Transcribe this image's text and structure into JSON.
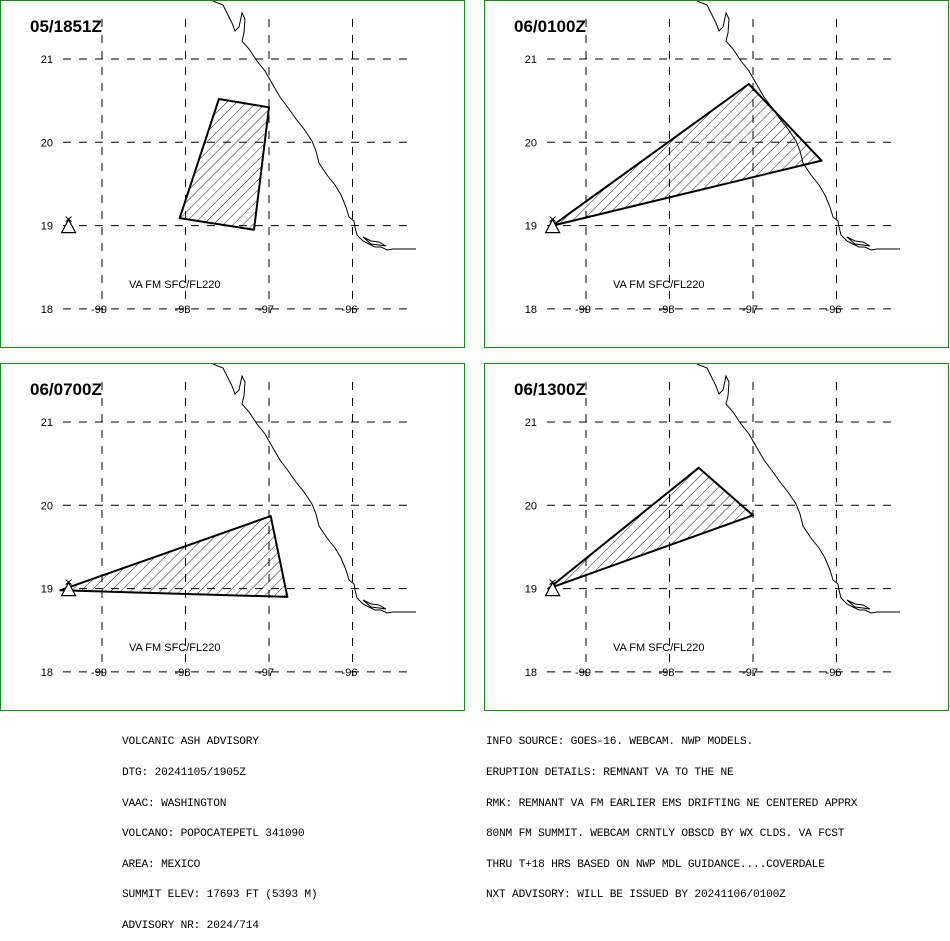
{
  "panels": [
    {
      "time": "05/1851Z",
      "va_label": "VA FM SFC/FL220",
      "polygon": [
        [
          -98.07,
          19.09
        ],
        [
          -97.6,
          20.52
        ],
        [
          -97.0,
          20.42
        ],
        [
          -97.18,
          18.95
        ]
      ]
    },
    {
      "time": "06/0100Z",
      "va_label": "VA FM SFC/FL220",
      "polygon": [
        [
          -99.4,
          19.0
        ],
        [
          -97.05,
          20.7
        ],
        [
          -96.18,
          19.78
        ],
        [
          -99.4,
          19.0
        ]
      ]
    },
    {
      "time": "06/0700Z",
      "va_label": "VA FM SFC/FL220",
      "polygon": [
        [
          -99.5,
          18.98
        ],
        [
          -96.98,
          19.87
        ],
        [
          -96.78,
          18.9
        ]
      ]
    },
    {
      "time": "06/1300Z",
      "va_label": "VA FM SFC/FL220",
      "polygon": [
        [
          -99.45,
          19.0
        ],
        [
          -97.65,
          20.45
        ],
        [
          -97.0,
          19.88
        ]
      ]
    }
  ],
  "axes": {
    "lat_ticks": [
      "21",
      "20",
      "19",
      "18"
    ],
    "lon_ticks": [
      "-99",
      "-98",
      "-97",
      "-96"
    ],
    "lat_values": [
      21,
      20,
      19,
      18
    ],
    "lon_values": [
      -99,
      -98,
      -97,
      -96
    ]
  },
  "volcano": {
    "lon": -99.4,
    "lat": 19.0,
    "icon": "volcano-triangle-icon"
  },
  "colors": {
    "border": "#1a8a1a",
    "polygon": "#000000"
  },
  "footer_left": [
    "VOLCANIC ASH ADVISORY",
    "DTG: 20241105/1905Z",
    "VAAC: WASHINGTON",
    "VOLCANO: POPOCATEPETL 341090",
    "AREA: MEXICO",
    "SUMMIT ELEV: 17693 FT (5393 M)",
    "ADVISORY NR: 2024/714"
  ],
  "footer_right": [
    "INFO SOURCE: GOES-16. WEBCAM. NWP MODELS.",
    "ERUPTION DETAILS: REMNANT VA TO THE NE",
    "RMK: REMNANT VA FM EARLIER EMS DRIFTING NE CENTERED APPRX",
    "80NM FM SUMMIT. WEBCAM CRNTLY OBSCD BY WX CLDS. VA FCST",
    "THRU T+18 HRS BASED ON NWP MDL GUIDANCE....COVERDALE",
    "NXT ADVISORY: WILL BE ISSUED BY 20241106/0100Z"
  ]
}
